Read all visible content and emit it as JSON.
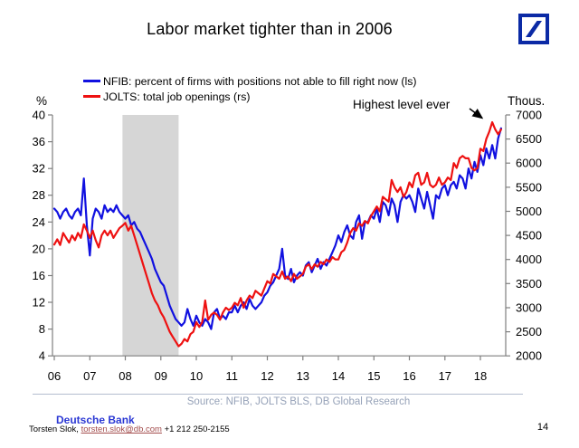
{
  "header": {
    "title": "Labor market tighter than in 2006",
    "logo_name": "deutsche-bank-logo",
    "logo_color": "#0b2aa5"
  },
  "chart_data": {
    "type": "line",
    "title": "Labor market tighter than in 2006",
    "left_axis": {
      "label": "%",
      "ticks": [
        40,
        36,
        32,
        28,
        24,
        20,
        16,
        12,
        8,
        4
      ],
      "range": [
        4,
        40
      ]
    },
    "right_axis": {
      "label": "Thous.",
      "ticks": [
        7000,
        6500,
        6000,
        5500,
        5000,
        4500,
        4000,
        3500,
        3000,
        2500,
        2000
      ],
      "range": [
        2000,
        7000
      ]
    },
    "x_axis": {
      "tick_labels": [
        "06",
        "07",
        "08",
        "09",
        "10",
        "11",
        "12",
        "13",
        "14",
        "15",
        "16",
        "17",
        "18"
      ],
      "start_year": 2006,
      "frequency": "monthly"
    },
    "grid": "off",
    "legend_position": "top-left",
    "axis_color": "#7f7f7f",
    "recession_band": {
      "start": 2007.92,
      "end": 2009.5,
      "color": "#d6d6d6"
    },
    "annotation": {
      "text": "Highest level ever"
    },
    "source": "Source: NFIB, JOLTS BLS, DB Global Research",
    "series": [
      {
        "name": "NFIB: percent of firms with positions not able to fill right now (ls)",
        "color": "#1111e0",
        "axis": "left",
        "start": "2006-01",
        "values": [
          26,
          25.5,
          24.5,
          25.5,
          26,
          25,
          24.5,
          25.5,
          26,
          25,
          30.5,
          23.5,
          19,
          24.5,
          26,
          25.5,
          24.5,
          26.5,
          25.5,
          26,
          25.5,
          26.5,
          25.5,
          25,
          24.5,
          25,
          23.5,
          24,
          23,
          22.5,
          21.5,
          20.5,
          19.5,
          18.5,
          17,
          16,
          15,
          14.5,
          13,
          11.5,
          10.5,
          9.5,
          9,
          8.5,
          9,
          11,
          9.5,
          8.5,
          10,
          9,
          8.5,
          9.5,
          9,
          8,
          10.5,
          11,
          9.5,
          10,
          9.5,
          10.5,
          10.5,
          11.5,
          10.5,
          11.5,
          12,
          11,
          12.5,
          11.5,
          11,
          11.5,
          12,
          13,
          13.5,
          14.5,
          15,
          16,
          17,
          20,
          16,
          15.5,
          17,
          15,
          16,
          16.5,
          16,
          17.5,
          18,
          16.5,
          17.5,
          18.5,
          17,
          18,
          17.5,
          18.5,
          19.5,
          20.5,
          22,
          21,
          22.5,
          23.5,
          22,
          21.5,
          24,
          25,
          21.5,
          24,
          24,
          25,
          24.5,
          26,
          24,
          27,
          26.5,
          25,
          27.5,
          26.5,
          24,
          27,
          28,
          27.5,
          28,
          27,
          25.5,
          29,
          27.5,
          26,
          28.5,
          26.5,
          24.5,
          28,
          27.5,
          29,
          29.5,
          28,
          29.5,
          30,
          29,
          31,
          30.5,
          29,
          32,
          30.5,
          33,
          31.5,
          34,
          32.5,
          35,
          33.5,
          35.5,
          33.5,
          36.5,
          38
        ]
      },
      {
        "name": "JOLTS: total job openings (rs)",
        "color": "#ee1111",
        "axis": "right",
        "start": "2006-01",
        "values": [
          4310,
          4420,
          4300,
          4550,
          4450,
          4350,
          4500,
          4400,
          4550,
          4450,
          4730,
          4600,
          4450,
          4600,
          4400,
          4250,
          4500,
          4600,
          4500,
          4600,
          4450,
          4550,
          4650,
          4700,
          4760,
          4600,
          4700,
          4500,
          4300,
          4100,
          3900,
          3700,
          3500,
          3300,
          3150,
          3050,
          2900,
          2800,
          2650,
          2500,
          2400,
          2300,
          2200,
          2250,
          2350,
          2300,
          2450,
          2500,
          2700,
          2600,
          2700,
          3150,
          2750,
          2850,
          2900,
          2850,
          2750,
          2900,
          3000,
          2950,
          3000,
          3100,
          3050,
          3200,
          3000,
          3150,
          3250,
          3200,
          3350,
          3300,
          3250,
          3400,
          3550,
          3500,
          3700,
          3650,
          3600,
          3750,
          3600,
          3650,
          3550,
          3700,
          3600,
          3650,
          3700,
          3850,
          3900,
          3800,
          3900,
          3850,
          3950,
          3900,
          4000,
          3950,
          4050,
          4000,
          4000,
          4150,
          4200,
          4350,
          4550,
          4650,
          4600,
          4750,
          4700,
          4800,
          4750,
          4900,
          5000,
          5100,
          5000,
          5300,
          5250,
          5200,
          5650,
          5500,
          5400,
          5500,
          5300,
          5400,
          5600,
          5500,
          5750,
          5800,
          5550,
          5600,
          5800,
          5550,
          5500,
          5550,
          5700,
          5550,
          5600,
          5700,
          5650,
          6000,
          5900,
          6100,
          6150,
          6100,
          6100,
          5900,
          5850,
          5900,
          6300,
          6250,
          6500,
          6650,
          6850,
          6700,
          6600,
          6700
        ]
      }
    ]
  },
  "footer": {
    "bank": "Deutsche Bank",
    "contact_name": "Torsten Slok,",
    "email": "torsten.slok@db.com",
    "phone": "+1 212 250-2155",
    "page": "14"
  }
}
